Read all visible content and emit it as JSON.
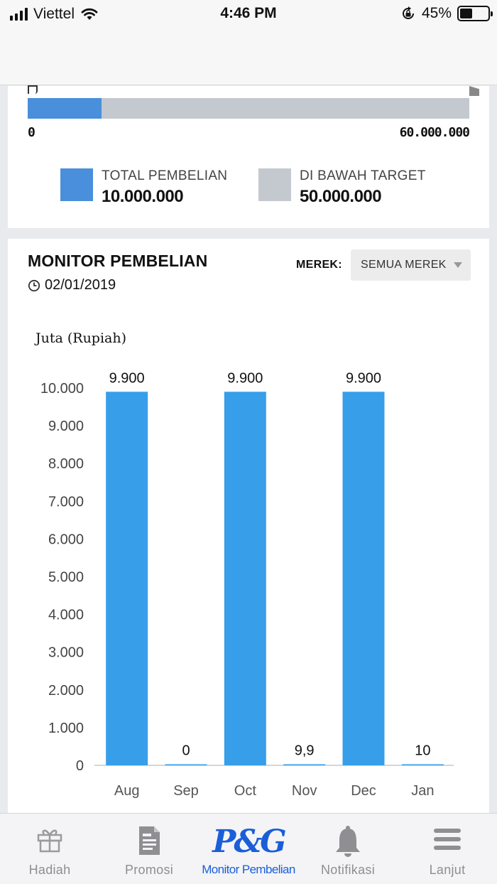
{
  "status_bar": {
    "carrier": "Viettel",
    "time": "4:46 PM",
    "battery": "45%",
    "battery_level": 0.45
  },
  "target": {
    "progress_fraction": 0.1667,
    "scale_min": "0",
    "scale_max": "60.000.000",
    "legend": [
      {
        "label": "TOTAL PEMBELIAN",
        "value": "10.000.000",
        "color": "#4a8fdb"
      },
      {
        "label": "DI BAWAH TARGET",
        "value": "50.000.000",
        "color": "#c4c8cf"
      }
    ]
  },
  "monitor": {
    "title": "MONITOR PEMBELIAN",
    "date": "02/01/2019",
    "brand_label": "MEREK:",
    "brand_value": "SEMUA MEREK"
  },
  "chart_data": {
    "type": "bar",
    "title": "",
    "ylabel": "Juta (Rupiah)",
    "xlabel": "",
    "categories": [
      "Aug",
      "Sep",
      "Oct",
      "Nov",
      "Dec",
      "Jan"
    ],
    "values": [
      9900,
      0,
      9900,
      9.9,
      9900,
      10
    ],
    "value_labels": [
      "9.900",
      "0",
      "9.900",
      "9,9",
      "9.900",
      "10"
    ],
    "ylim": [
      0,
      10000
    ],
    "yticks": [
      0,
      1000,
      2000,
      3000,
      4000,
      5000,
      6000,
      7000,
      8000,
      9000,
      10000
    ],
    "ytick_labels": [
      "0",
      "1.000",
      "2.000",
      "3.000",
      "4.000",
      "5.000",
      "6.000",
      "7.000",
      "8.000",
      "9.000",
      "10.000"
    ],
    "bar_color": "#379ee9",
    "grid": false
  },
  "tabbar": {
    "tabs": [
      {
        "label": "Hadiah",
        "icon": "gift-icon"
      },
      {
        "label": "Promosi",
        "icon": "document-icon"
      },
      {
        "label": "Monitor Pembelian",
        "icon": "pg-logo-icon",
        "logo_text": "P&G"
      },
      {
        "label": "Notifikasi",
        "icon": "bell-icon"
      },
      {
        "label": "Lanjut",
        "icon": "menu-icon"
      }
    ]
  }
}
